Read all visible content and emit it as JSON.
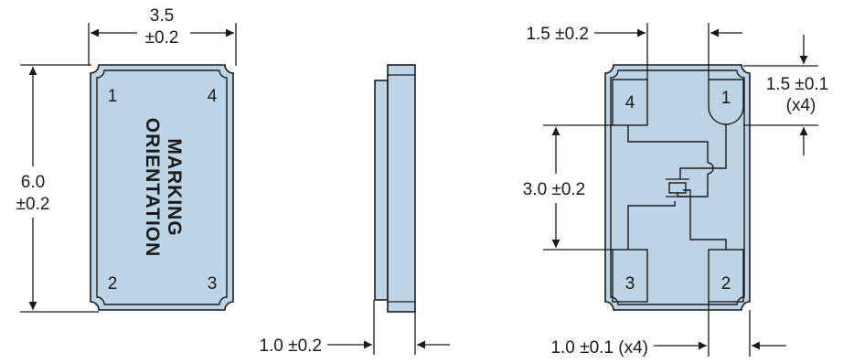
{
  "colors": {
    "body_fill": "#bcd4e6",
    "line": "#1a1a1a",
    "background": "#ffffff"
  },
  "top_view": {
    "width_value": "3.5",
    "width_tolerance": "±0.2",
    "height_value": "6.0",
    "height_tolerance": "±0.2",
    "marking_line1": "MARKING",
    "marking_line2": "ORIENTATION",
    "pins": {
      "p1": "1",
      "p2": "2",
      "p3": "3",
      "p4": "4"
    }
  },
  "side_view": {
    "thickness": "1.0 ±0.2"
  },
  "bottom_view": {
    "pad_width": "1.5 ±0.2",
    "pad_height_line1": "1.5 ±0.1",
    "pad_height_line2": "(x4)",
    "pad_spacing": "3.0 ±0.2",
    "pad_length": "1.0 ±0.1 (x4)",
    "pins": {
      "p1": "1",
      "p2": "2",
      "p3": "3",
      "p4": "4"
    }
  }
}
